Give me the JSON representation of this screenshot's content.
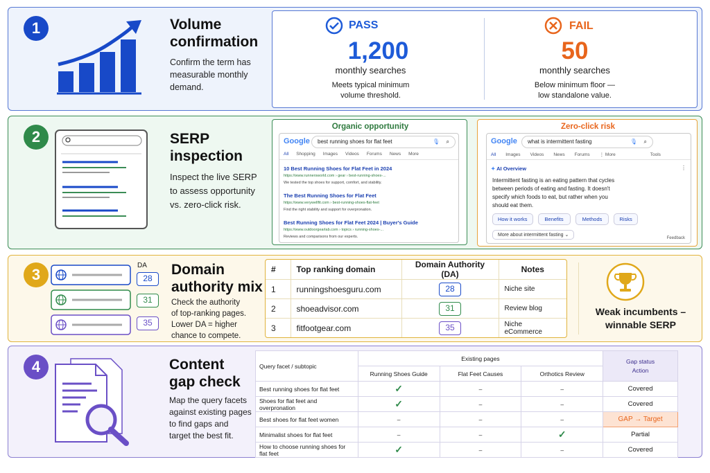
{
  "colors": {
    "blue": "#1849c8",
    "green": "#2f8a4a",
    "gold": "#e0a81a",
    "purple": "#6a4fc6",
    "pass": "#1e5bd8",
    "fail": "#e8651c",
    "gap": "#e8651c"
  },
  "step1": {
    "number": "1",
    "title_line1": "Volume",
    "title_line2": "confirmation",
    "desc_line1": "Confirm the term has",
    "desc_line2": "measurable monthly",
    "desc_line3": "demand.",
    "pass": {
      "label": "PASS",
      "value": "1,200",
      "unit": "monthly searches",
      "note_line1": "Meets typical minimum",
      "note_line2": "volume threshold.",
      "icon": "check-circle-icon"
    },
    "fail": {
      "label": "FAIL",
      "value": "50",
      "unit": "monthly searches",
      "note_line1": "Below minimum floor —",
      "note_line2": "low standalone value.",
      "icon": "x-circle-icon"
    }
  },
  "step2": {
    "number": "2",
    "title_line1": "SERP",
    "title_line2": "inspection",
    "desc_line1": "Inspect the live SERP",
    "desc_line2": "to assess opportunity",
    "desc_line3": "vs. zero-click risk.",
    "organic": {
      "label": "Organic opportunity",
      "logo": "Google",
      "query": "best running shoes for flat feet",
      "tabs": [
        "All",
        "Shopping",
        "Images",
        "Videos",
        "Forums",
        "News",
        "More"
      ],
      "results": [
        {
          "title": "10 Best Running Shoes for Flat Feet in 2024",
          "url": "https://www.runnersworld.com › gear › best-running-shoes-...",
          "snippet": "We tested the top shoes for support, comfort, and stability."
        },
        {
          "title": "The Best Running Shoes for Flat Feet",
          "url": "https://www.verywellfit.com › best-running-shoes-flat-feet",
          "snippet": "Find the right stability and support for overpronation."
        },
        {
          "title": "Best Running Shoes for Flat Feet 2024 | Buyer's Guide",
          "url": "https://www.outdoorgearlab.com › topics › running-shoes-...",
          "snippet": "Reviews and comparisons from our experts."
        }
      ]
    },
    "zero": {
      "label": "Zero-click risk",
      "logo": "Google",
      "query": "what is intermittent fasting",
      "tabs": [
        "All",
        "Images",
        "Videos",
        "News",
        "Forums",
        "⋮ More",
        "Tools"
      ],
      "ai_title": "AI Overview",
      "ai_text_line1": "Intermittent fasting is an eating pattern that cycles",
      "ai_text_line2": "between periods of eating and fasting. It doesn't",
      "ai_text_line3": "specify which foods to eat, but rather when you",
      "ai_text_line4": "should eat them.",
      "chips": [
        "How it works",
        "Benefits",
        "Methods",
        "Risks"
      ],
      "more": "More about intermittent fasting",
      "feedback": "Feedback"
    }
  },
  "step3": {
    "number": "3",
    "title_line1": "Domain",
    "title_line2": "authority mix",
    "desc_line1": "Check the authority",
    "desc_line2": "of top-ranking pages.",
    "desc_line3": "Lower DA = higher",
    "desc_line4": "chance to compete.",
    "da_label": "DA",
    "da_values": [
      "28",
      "31",
      "35"
    ],
    "headers": [
      "#",
      "Top ranking domain",
      "Domain Authority (DA)",
      "Notes"
    ],
    "rows": [
      {
        "n": "1",
        "domain": "runningshoesguru.com",
        "da": "28",
        "note": "Niche site"
      },
      {
        "n": "2",
        "domain": "shoeadvisor.com",
        "da": "31",
        "note": "Review blog"
      },
      {
        "n": "3",
        "domain": "fitfootgear.com",
        "da": "35",
        "note": "Niche eCommerce"
      }
    ],
    "verdict_line1": "Weak incumbents –",
    "verdict_line2": "winnable SERP"
  },
  "step4": {
    "number": "4",
    "title_line1": "Content",
    "title_line2": "gap check",
    "desc_line1": "Map the query facets",
    "desc_line2": "against existing pages",
    "desc_line3": "to find gaps and",
    "desc_line4": "target the best fit.",
    "col_query": "Query facet / subtopic",
    "col_existing": "Existing pages",
    "col_pages": [
      "Running Shoes Guide",
      "Flat Feet Causes",
      "Orthotics Review"
    ],
    "col_status_line1": "Gap status",
    "col_status_line2": "Action",
    "rows": [
      {
        "facet": "Best running shoes for flat feet",
        "cells": [
          "✓",
          "–",
          "–"
        ],
        "status": "Covered"
      },
      {
        "facet": "Shoes for flat feet and overpronation",
        "cells": [
          "✓",
          "–",
          "–"
        ],
        "status": "Covered"
      },
      {
        "facet": "Best shoes for flat feet women",
        "cells": [
          "–",
          "–",
          "–"
        ],
        "status": "GAP → Target"
      },
      {
        "facet": "Minimalist shoes for flat feet",
        "cells": [
          "–",
          "–",
          "✓"
        ],
        "status": "Partial"
      },
      {
        "facet": "How to choose running shoes for flat feet",
        "cells": [
          "✓",
          "–",
          "–"
        ],
        "status": "Covered"
      }
    ]
  }
}
